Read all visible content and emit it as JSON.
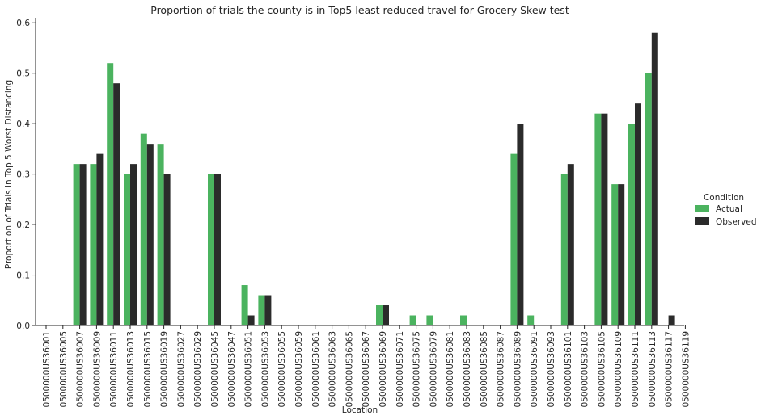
{
  "chart_data": {
    "type": "bar",
    "title": "Proportion of trials the county is in Top5 least reduced travel for Grocery Skew test",
    "xlabel": "Location",
    "ylabel": "Proportion of Trials in Top 5 Worst Distancing",
    "ylim": [
      0,
      0.61
    ],
    "yticks": [
      "0.0",
      "0.1",
      "0.2",
      "0.3",
      "0.4",
      "0.5",
      "0.6"
    ],
    "grid": false,
    "legend": {
      "title": "Condition",
      "placement": "right"
    },
    "categories": [
      "0500000US36001",
      "0500000US36005",
      "0500000US36007",
      "0500000US36009",
      "0500000US36011",
      "0500000US36013",
      "0500000US36015",
      "0500000US36019",
      "0500000US36027",
      "0500000US36029",
      "0500000US36045",
      "0500000US36047",
      "0500000US36051",
      "0500000US36053",
      "0500000US36055",
      "0500000US36059",
      "0500000US36061",
      "0500000US36063",
      "0500000US36065",
      "0500000US36067",
      "0500000US36069",
      "0500000US36071",
      "0500000US36075",
      "0500000US36079",
      "0500000US36081",
      "0500000US36083",
      "0500000US36085",
      "0500000US36087",
      "0500000US36089",
      "0500000US36091",
      "0500000US36093",
      "0500000US36101",
      "0500000US36103",
      "0500000US36105",
      "0500000US36109",
      "0500000US36111",
      "0500000US36113",
      "0500000US36117",
      "0500000US36119"
    ],
    "series": [
      {
        "name": "Actual",
        "color": "#4bb35f",
        "values": [
          0,
          0,
          0.32,
          0.32,
          0.52,
          0.3,
          0.38,
          0.36,
          0,
          0,
          0.3,
          0,
          0.08,
          0.06,
          0,
          0,
          0,
          0,
          0,
          0,
          0.04,
          0,
          0.02,
          0.02,
          0,
          0.02,
          0,
          0,
          0.34,
          0.02,
          0,
          0.3,
          0,
          0.42,
          0.28,
          0.4,
          0.5,
          0,
          0
        ]
      },
      {
        "name": "Observed",
        "color": "#2b2b2b",
        "values": [
          0,
          0,
          0.32,
          0.34,
          0.48,
          0.32,
          0.36,
          0.3,
          0,
          0,
          0.3,
          0,
          0.02,
          0.06,
          0,
          0,
          0,
          0,
          0,
          0,
          0.04,
          0,
          0,
          0,
          0,
          0,
          0,
          0,
          0.4,
          0,
          0,
          0.32,
          0,
          0.42,
          0.28,
          0.44,
          0.58,
          0.02,
          0
        ]
      }
    ]
  }
}
